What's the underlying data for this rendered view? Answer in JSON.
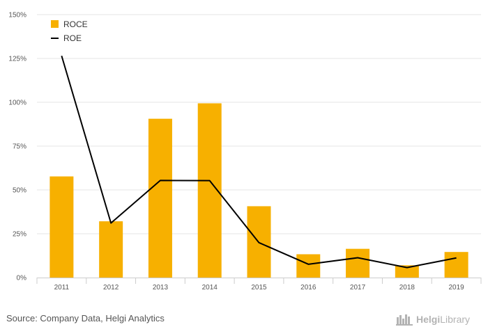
{
  "chart_data": {
    "type": "bar",
    "categories": [
      "2011",
      "2012",
      "2013",
      "2014",
      "2015",
      "2016",
      "2017",
      "2018",
      "2019"
    ],
    "series": [
      {
        "name": "ROCE",
        "type": "bar",
        "values": [
          57.7,
          32.1,
          90.6,
          99.4,
          40.7,
          13.3,
          16.4,
          7.0,
          14.6
        ]
      },
      {
        "name": "ROE",
        "type": "line",
        "values": [
          126.5,
          31.1,
          55.4,
          55.3,
          19.9,
          7.6,
          11.3,
          5.7,
          11.2
        ]
      }
    ],
    "y_ticks": [
      "0%",
      "25%",
      "50%",
      "75%",
      "100%",
      "125%",
      "150%"
    ],
    "ylim": [
      0,
      150
    ],
    "colors": {
      "ROCE": "#f7b000",
      "ROE": "#000000"
    },
    "legend_position": "top-left",
    "grid": true
  },
  "footer": {
    "source": "Source: Company Data, Helgi Analytics",
    "logo_text_strong": "Helgi",
    "logo_text": "Library",
    "logo_icon": "library-books-icon"
  }
}
